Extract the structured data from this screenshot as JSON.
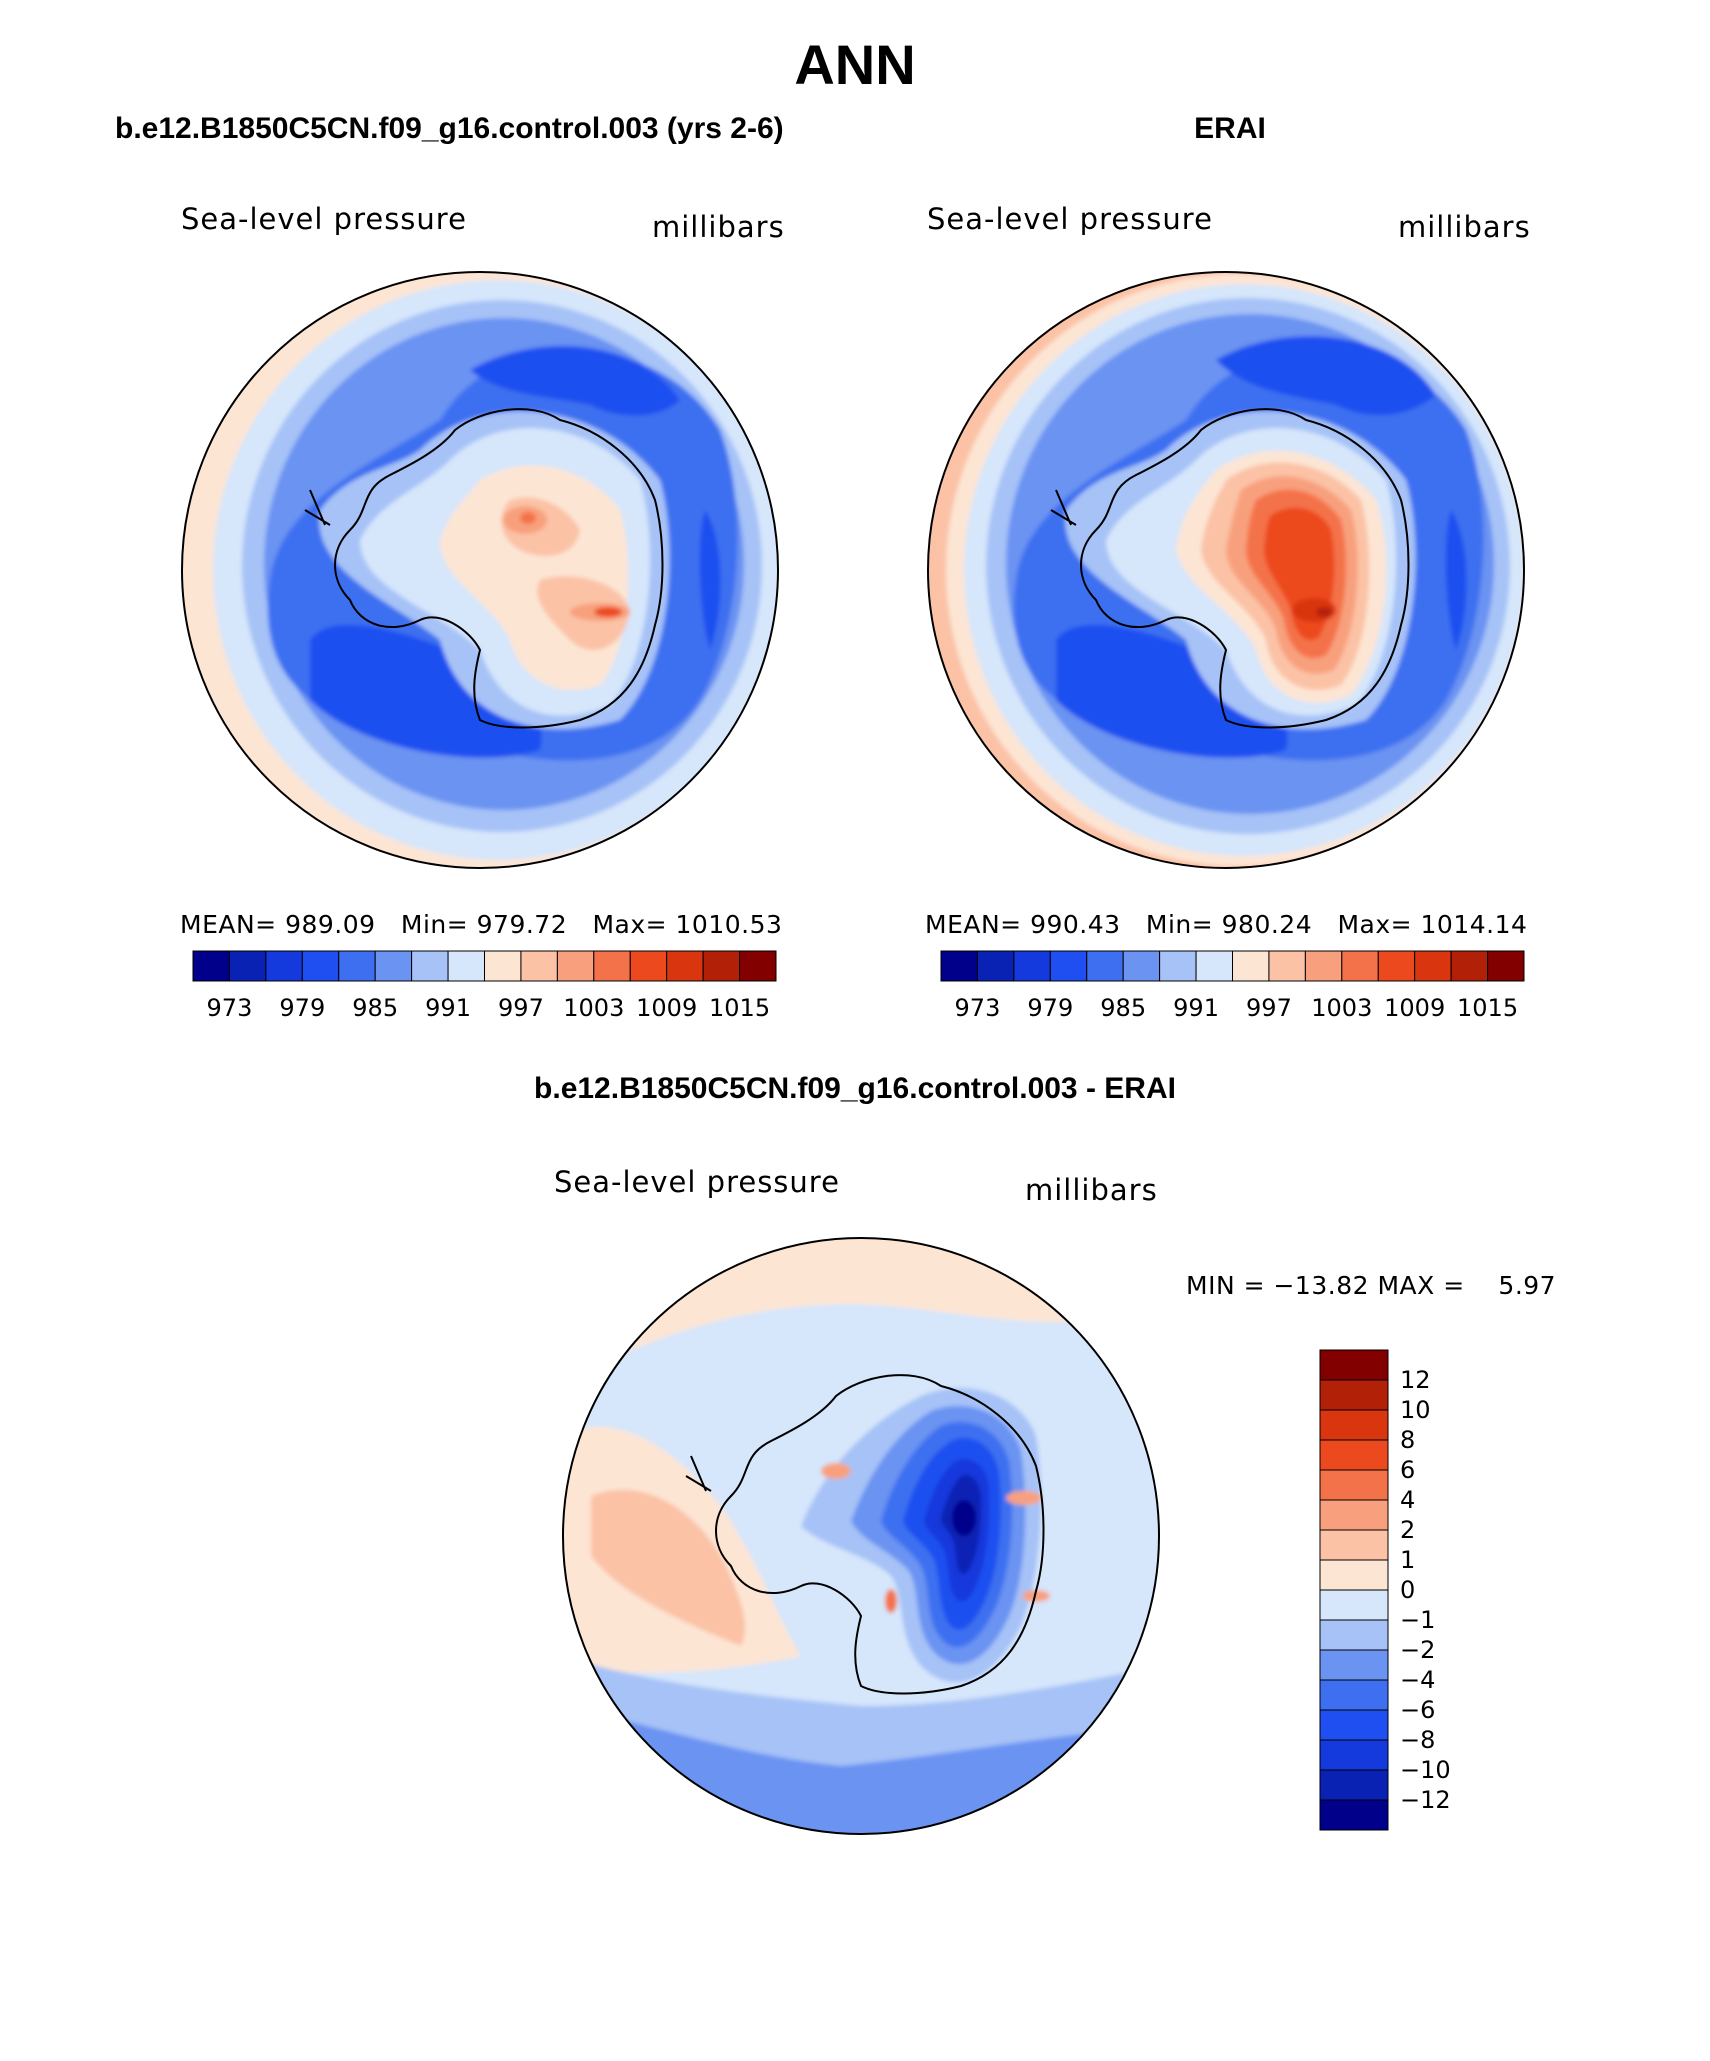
{
  "page": {
    "title": "ANN",
    "coastline_color": "#000000"
  },
  "panel_model": {
    "heading": "b.e12.B1850C5CN.f09_g16.control.003 (yrs 2-6)",
    "variable": "Sea-level pressure",
    "units": "millibars",
    "stats": "MEAN= 989.09   Min= 979.72   Max= 1010.53",
    "colorbar_ticks": [
      "973",
      "979",
      "985",
      "991",
      "997",
      "1003",
      "1009",
      "1015"
    ]
  },
  "panel_obs": {
    "heading": "ERAI",
    "variable": "Sea-level pressure",
    "units": "millibars",
    "stats": "MEAN= 990.43   Min= 980.24   Max= 1014.14",
    "colorbar_ticks": [
      "973",
      "979",
      "985",
      "991",
      "997",
      "1003",
      "1009",
      "1015"
    ]
  },
  "panel_diff": {
    "heading": "b.e12.B1850C5CN.f09_g16.control.003 - ERAI",
    "variable": "Sea-level pressure",
    "units": "millibars",
    "stats": "MIN = −13.82 MAX =    5.97",
    "colorbar_ticks": [
      "12",
      "10",
      "8",
      "6",
      "4",
      "2",
      "1",
      "0",
      "−1",
      "−2",
      "−4",
      "−6",
      "−8",
      "−10",
      "−12"
    ]
  },
  "chart_data": [
    {
      "type": "heatmap",
      "title": "b.e12.B1850C5CN.f09_g16.control.003 (yrs 2-6)",
      "variable": "Sea-level pressure",
      "units": "millibars",
      "projection": "south polar stereographic",
      "mean": 989.09,
      "min": 979.72,
      "max": 1010.53,
      "contour_levels": [
        973,
        976,
        979,
        982,
        985,
        988,
        991,
        994,
        997,
        1000,
        1003,
        1006,
        1009,
        1012,
        1015
      ],
      "colors": [
        "#00008b",
        "#0a22b4",
        "#1439dc",
        "#1f4ff0",
        "#3e6ff0",
        "#6b93f2",
        "#a6c2f7",
        "#d6e6fb",
        "#fde5d4",
        "#fbc2a6",
        "#f8a07d",
        "#f4724a",
        "#ec4a1e",
        "#d9360f",
        "#b32008",
        "#820000"
      ]
    },
    {
      "type": "heatmap",
      "title": "ERAI",
      "variable": "Sea-level pressure",
      "units": "millibars",
      "projection": "south polar stereographic",
      "mean": 990.43,
      "min": 980.24,
      "max": 1014.14,
      "contour_levels": [
        973,
        976,
        979,
        982,
        985,
        988,
        991,
        994,
        997,
        1000,
        1003,
        1006,
        1009,
        1012,
        1015
      ],
      "colors": [
        "#00008b",
        "#0a22b4",
        "#1439dc",
        "#1f4ff0",
        "#3e6ff0",
        "#6b93f2",
        "#a6c2f7",
        "#d6e6fb",
        "#fde5d4",
        "#fbc2a6",
        "#f8a07d",
        "#f4724a",
        "#ec4a1e",
        "#d9360f",
        "#b32008",
        "#820000"
      ]
    },
    {
      "type": "heatmap",
      "title": "b.e12.B1850C5CN.f09_g16.control.003 - ERAI",
      "variable": "Sea-level pressure",
      "units": "millibars",
      "projection": "south polar stereographic",
      "min": -13.82,
      "max": 5.97,
      "contour_levels": [
        -12,
        -10,
        -8,
        -6,
        -4,
        -2,
        -1,
        0,
        1,
        2,
        4,
        6,
        8,
        10,
        12
      ],
      "colors": [
        "#00008b",
        "#0a22b4",
        "#1439dc",
        "#1f4ff0",
        "#3e6ff0",
        "#6b93f2",
        "#a6c2f7",
        "#d6e6fb",
        "#fde5d4",
        "#fbc2a6",
        "#f8a07d",
        "#f4724a",
        "#ec4a1e",
        "#d9360f",
        "#b32008",
        "#820000"
      ]
    }
  ]
}
